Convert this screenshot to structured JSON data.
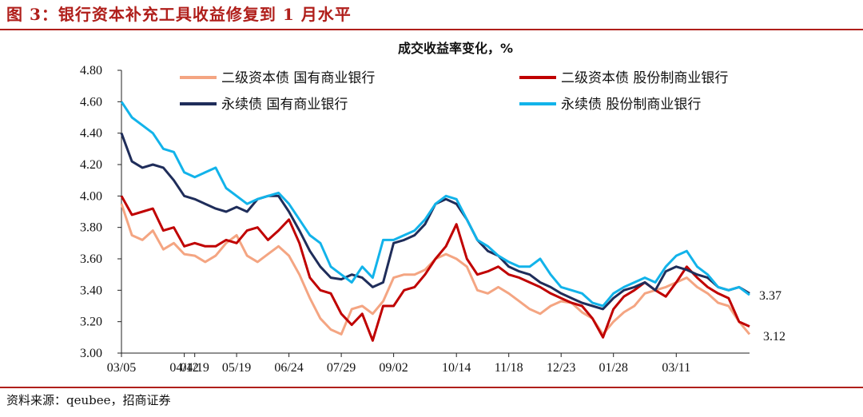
{
  "figure": {
    "title": "图 3：银行资本补充工具收益修复到 1 月水平",
    "source": "资料来源：qeubee，招商证券"
  },
  "colors": {
    "brand_red": "#B01F1B"
  },
  "chart_data": {
    "type": "line",
    "title": "成交收益率变化，%",
    "xlabel": "",
    "ylabel": "",
    "ylim": [
      3.0,
      4.8
    ],
    "yticks": [
      "3.00",
      "3.20",
      "3.40",
      "3.60",
      "3.80",
      "4.00",
      "4.20",
      "4.40",
      "4.60",
      "4.80"
    ],
    "x": [
      "03/05",
      "03/12",
      "03/19",
      "03/26",
      "04/02",
      "04/09",
      "04/12",
      "04/19",
      "04/26",
      "05/03",
      "05/10",
      "05/19",
      "05/26",
      "06/02",
      "06/09",
      "06/16",
      "06/24",
      "07/01",
      "07/08",
      "07/15",
      "07/22",
      "07/29",
      "08/05",
      "08/12",
      "08/19",
      "08/26",
      "09/02",
      "09/09",
      "09/16",
      "09/23",
      "09/30",
      "10/07",
      "10/14",
      "10/21",
      "10/28",
      "11/04",
      "11/11",
      "11/18",
      "11/25",
      "12/02",
      "12/09",
      "12/16",
      "12/23",
      "12/30",
      "01/06",
      "01/13",
      "01/20",
      "01/28",
      "02/04",
      "02/11",
      "02/18",
      "02/25",
      "03/04",
      "03/11",
      "03/18",
      "03/25",
      "04/01",
      "04/08",
      "04/19",
      "04/26",
      "05/03"
    ],
    "xticks": [
      "03/05",
      "04/12",
      "05/19",
      "06/24",
      "07/29",
      "09/02",
      "10/14",
      "11/18",
      "12/23",
      "01/28",
      "03/11",
      "04/19"
    ],
    "grid": false,
    "legend_position": "top",
    "series": [
      {
        "name": "二级资本债 国有商业银行",
        "color": "#F4A582",
        "values": [
          3.95,
          3.75,
          3.72,
          3.78,
          3.66,
          3.7,
          3.63,
          3.62,
          3.58,
          3.62,
          3.7,
          3.75,
          3.62,
          3.58,
          3.63,
          3.68,
          3.62,
          3.5,
          3.35,
          3.22,
          3.15,
          3.12,
          3.28,
          3.3,
          3.25,
          3.33,
          3.48,
          3.5,
          3.5,
          3.53,
          3.6,
          3.63,
          3.6,
          3.55,
          3.4,
          3.38,
          3.42,
          3.38,
          3.33,
          3.28,
          3.25,
          3.3,
          3.33,
          3.32,
          3.26,
          3.22,
          3.12,
          3.2,
          3.26,
          3.3,
          3.38,
          3.4,
          3.42,
          3.45,
          3.48,
          3.42,
          3.38,
          3.32,
          3.3,
          3.2,
          3.12
        ]
      },
      {
        "name": "二级资本债 股份制商业银行",
        "color": "#C00000",
        "values": [
          4.0,
          3.88,
          3.9,
          3.92,
          3.78,
          3.8,
          3.68,
          3.7,
          3.68,
          3.68,
          3.72,
          3.7,
          3.78,
          3.8,
          3.72,
          3.78,
          3.85,
          3.7,
          3.48,
          3.4,
          3.38,
          3.25,
          3.18,
          3.25,
          3.08,
          3.3,
          3.3,
          3.4,
          3.42,
          3.5,
          3.6,
          3.68,
          3.82,
          3.6,
          3.5,
          3.52,
          3.55,
          3.5,
          3.48,
          3.45,
          3.42,
          3.38,
          3.35,
          3.32,
          3.3,
          3.22,
          3.1,
          3.28,
          3.36,
          3.4,
          3.45,
          3.4,
          3.36,
          3.45,
          3.55,
          3.48,
          3.42,
          3.38,
          3.35,
          3.2,
          3.17
        ]
      },
      {
        "name": "永续债 国有商业银行",
        "color": "#1F2D5A",
        "values": [
          4.4,
          4.22,
          4.18,
          4.2,
          4.18,
          4.1,
          4.0,
          3.98,
          3.95,
          3.92,
          3.9,
          3.93,
          3.9,
          3.98,
          4.0,
          4.0,
          3.9,
          3.78,
          3.65,
          3.55,
          3.48,
          3.47,
          3.5,
          3.48,
          3.42,
          3.45,
          3.7,
          3.72,
          3.75,
          3.82,
          3.95,
          3.98,
          3.95,
          3.85,
          3.72,
          3.65,
          3.62,
          3.55,
          3.52,
          3.5,
          3.45,
          3.42,
          3.38,
          3.35,
          3.32,
          3.3,
          3.28,
          3.35,
          3.4,
          3.42,
          3.45,
          3.4,
          3.52,
          3.55,
          3.53,
          3.5,
          3.48,
          3.42,
          3.4,
          3.42,
          3.38
        ]
      },
      {
        "name": "永续债 股份制商业银行",
        "color": "#12B3EA",
        "values": [
          4.6,
          4.5,
          4.45,
          4.4,
          4.3,
          4.28,
          4.15,
          4.12,
          4.15,
          4.18,
          4.05,
          4.0,
          3.95,
          3.98,
          4.0,
          4.02,
          3.95,
          3.85,
          3.75,
          3.7,
          3.55,
          3.5,
          3.45,
          3.55,
          3.48,
          3.72,
          3.72,
          3.75,
          3.78,
          3.85,
          3.95,
          4.0,
          3.98,
          3.85,
          3.72,
          3.68,
          3.62,
          3.58,
          3.55,
          3.55,
          3.6,
          3.5,
          3.42,
          3.4,
          3.38,
          3.32,
          3.3,
          3.38,
          3.42,
          3.45,
          3.48,
          3.45,
          3.55,
          3.62,
          3.65,
          3.55,
          3.5,
          3.42,
          3.4,
          3.42,
          3.37
        ]
      }
    ],
    "end_labels": [
      "3.37",
      "3.12"
    ]
  }
}
